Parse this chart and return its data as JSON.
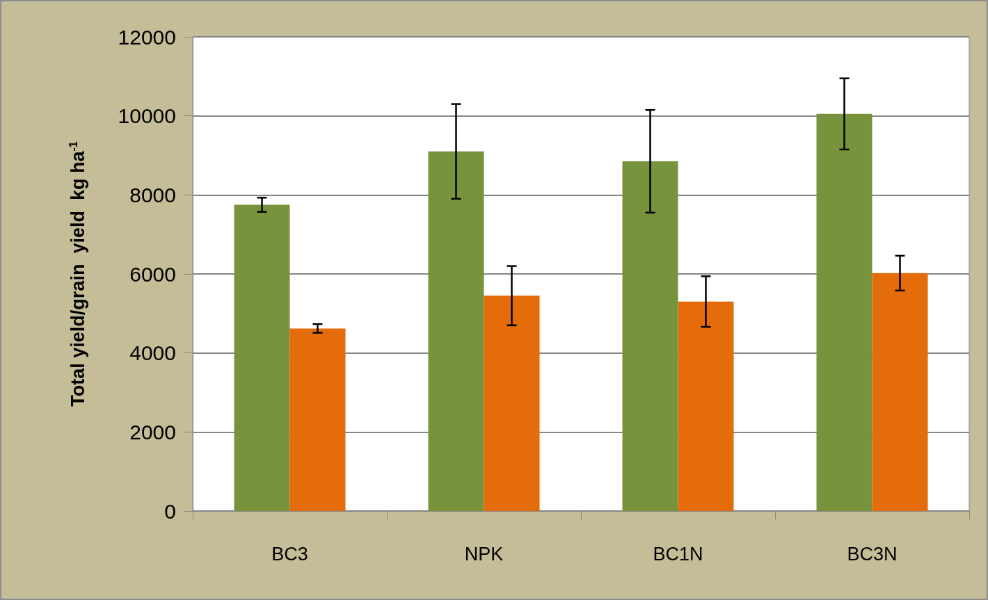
{
  "chart_data": {
    "type": "bar",
    "ylabel": "Total yield/grain  yield  kg ha$^{-1}$",
    "categories": [
      "BC3",
      "NPK",
      "BC1N",
      "BC3N"
    ],
    "series": [
      {
        "color": "#77933c",
        "values": [
          7750,
          9100,
          8850,
          10050
        ],
        "errors": [
          180,
          1200,
          1300,
          900
        ]
      },
      {
        "color": "#e46c0a",
        "values": [
          4620,
          5450,
          5300,
          6020
        ],
        "errors": [
          110,
          750,
          640,
          440
        ]
      }
    ],
    "ylim": [
      0,
      12000
    ],
    "yticks": [
      0,
      2000,
      4000,
      6000,
      8000,
      10000,
      12000
    ],
    "grid": "y"
  }
}
